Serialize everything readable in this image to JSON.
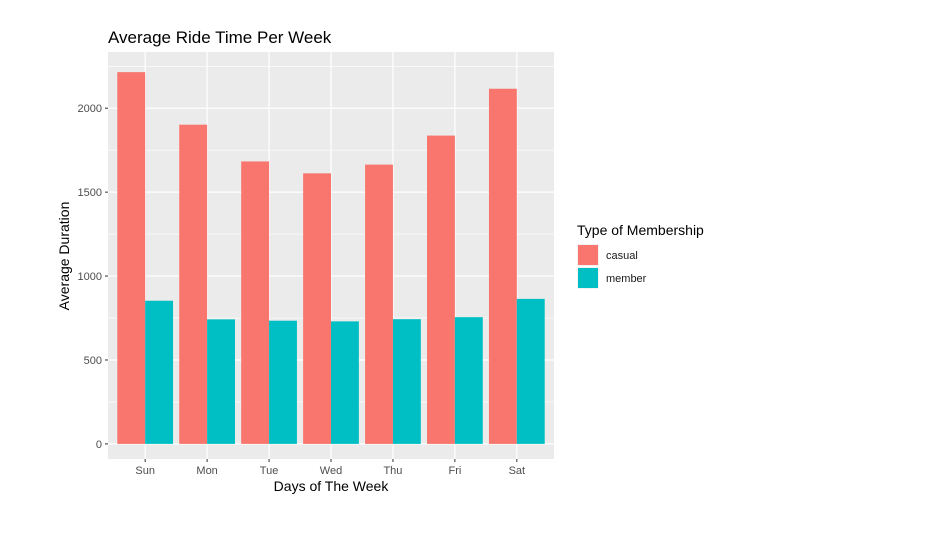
{
  "chart_data": {
    "type": "bar",
    "title": "Average Ride Time Per Week",
    "xlabel": "Days of The Week",
    "ylabel": "Average Duration",
    "categories": [
      "Sun",
      "Mon",
      "Tue",
      "Wed",
      "Thu",
      "Fri",
      "Sat"
    ],
    "series": [
      {
        "name": "casual",
        "color": "#F8766D",
        "values": [
          2215,
          1902,
          1683,
          1612,
          1664,
          1837,
          2116
        ]
      },
      {
        "name": "member",
        "color": "#00BFC4",
        "values": [
          853,
          742,
          734,
          730,
          743,
          755,
          864
        ]
      }
    ],
    "ylim": [
      -90,
      2335
    ],
    "yticks": [
      0,
      500,
      1000,
      1500,
      2000
    ],
    "grid": true,
    "legend": {
      "title": "Type of Membership",
      "position": "right"
    }
  }
}
